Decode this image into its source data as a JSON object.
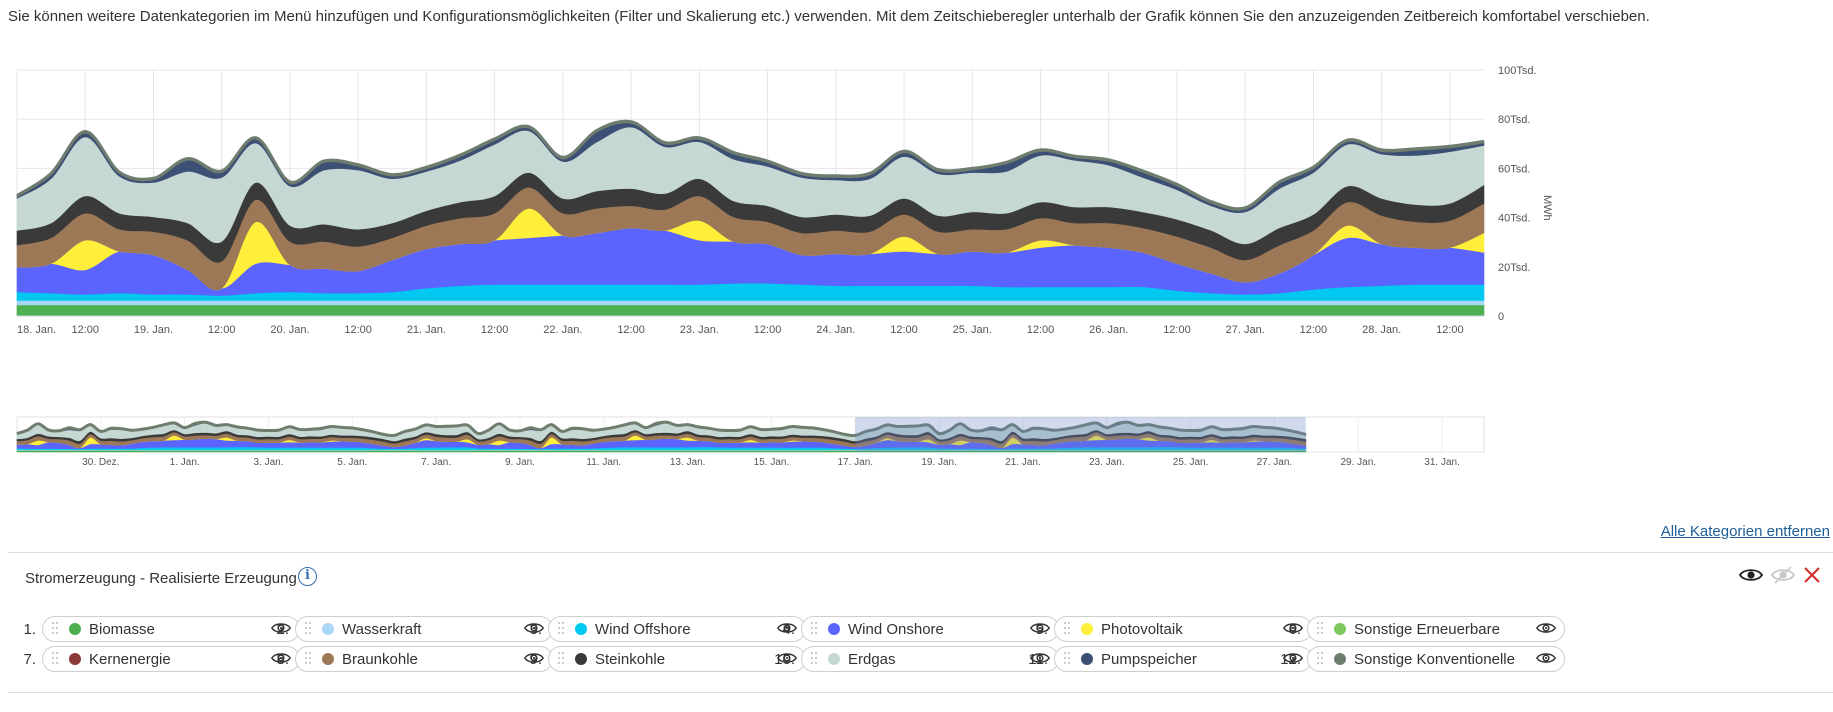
{
  "intro_text": "Sie können weitere Datenkategorien im Menü hinzufügen und Konfigurationsmöglichkeiten (Filter und Skalierung etc.) verwenden. Mit dem Zeitschieberegler unterhalb der Grafik können Sie den anzuzeigenden Zeitbereich komfortabel verschieben.",
  "remove_all_label": "Alle Kategorien entfernen",
  "section_title": "Stromerzeugung - Realisierte Erzeugung",
  "info_label": "i",
  "categories": [
    {
      "num": "1.",
      "label": "Biomasse",
      "color": "#4caf50"
    },
    {
      "num": "2.",
      "label": "Wasserkraft",
      "color": "#a8d8f5"
    },
    {
      "num": "3.",
      "label": "Wind Offshore",
      "color": "#00c8f0"
    },
    {
      "num": "4.",
      "label": "Wind Onshore",
      "color": "#5b64ff"
    },
    {
      "num": "5.",
      "label": "Photovoltaik",
      "color": "#ffee3a"
    },
    {
      "num": "6.",
      "label": "Sonstige Erneuerbare",
      "color": "#7dc95e"
    },
    {
      "num": "7.",
      "label": "Kernenergie",
      "color": "#8b3a3a"
    },
    {
      "num": "8.",
      "label": "Braunkohle",
      "color": "#9c7856"
    },
    {
      "num": "9.",
      "label": "Steinkohle",
      "color": "#3a3a3a"
    },
    {
      "num": "10.",
      "label": "Erdgas",
      "color": "#c5d8d4"
    },
    {
      "num": "11.",
      "label": "Pumpspeicher",
      "color": "#3c4f75"
    },
    {
      "num": "12.",
      "label": "Sonstige Konventionelle",
      "color": "#6f7d6f"
    }
  ],
  "chart_data": {
    "type": "area",
    "stacked": true,
    "ylabel": "MWh",
    "ylim": [
      0,
      100000
    ],
    "yticks": [
      0,
      20000,
      40000,
      60000,
      80000,
      100000
    ],
    "ytick_labels": [
      "0",
      "20Tsd.",
      "40Tsd.",
      "60Tsd.",
      "80Tsd.",
      "100Tsd."
    ],
    "x_unit": "hours since 18. Jan. 00:00",
    "xlim": [
      0,
      258
    ],
    "xticks": [
      0,
      12,
      24,
      36,
      48,
      60,
      72,
      84,
      96,
      108,
      120,
      132,
      144,
      156,
      168,
      180,
      192,
      204,
      216,
      228,
      240,
      252
    ],
    "xtick_labels": [
      "18. Jan.",
      "12:00",
      "19. Jan.",
      "12:00",
      "20. Jan.",
      "12:00",
      "21. Jan.",
      "12:00",
      "22. Jan.",
      "12:00",
      "23. Jan.",
      "12:00",
      "24. Jan.",
      "12:00",
      "25. Jan.",
      "12:00",
      "26. Jan.",
      "12:00",
      "27. Jan.",
      "12:00",
      "28. Jan.",
      "12:00"
    ],
    "x": [
      0,
      6,
      12,
      18,
      24,
      30,
      36,
      42,
      48,
      54,
      60,
      66,
      72,
      78,
      84,
      90,
      96,
      102,
      108,
      114,
      120,
      126,
      132,
      138,
      144,
      150,
      156,
      162,
      168,
      174,
      180,
      186,
      192,
      198,
      204,
      210,
      216,
      222,
      228,
      234,
      240,
      246,
      252,
      258
    ],
    "series": [
      {
        "name": "Biomasse",
        "color": "#4caf50",
        "values": [
          4500,
          4500,
          4500,
          4500,
          4500,
          4500,
          4500,
          4500,
          4500,
          4500,
          4500,
          4500,
          4500,
          4500,
          4500,
          4500,
          4500,
          4500,
          4500,
          4500,
          4500,
          4500,
          4500,
          4500,
          4500,
          4500,
          4500,
          4500,
          4500,
          4500,
          4500,
          4500,
          4500,
          4500,
          4500,
          4500,
          4500,
          4500,
          4500,
          4500,
          4500,
          4500,
          4500,
          4500
        ]
      },
      {
        "name": "Wasserkraft",
        "color": "#a8d8f5",
        "values": [
          1800,
          1800,
          1800,
          1800,
          1800,
          1800,
          1800,
          1800,
          1800,
          1800,
          1800,
          1800,
          1800,
          1800,
          1800,
          1800,
          1800,
          1800,
          1800,
          1800,
          1800,
          1800,
          1800,
          1800,
          1800,
          1800,
          1800,
          1800,
          1800,
          1800,
          1800,
          1800,
          1800,
          1800,
          1800,
          1800,
          1800,
          1800,
          1800,
          1800,
          1800,
          1800,
          1800,
          1800
        ]
      },
      {
        "name": "Wind Offshore",
        "color": "#00c8f0",
        "values": [
          3500,
          3000,
          2500,
          3000,
          2500,
          2500,
          2000,
          3000,
          3500,
          3000,
          3000,
          3500,
          5000,
          6000,
          6500,
          6500,
          6500,
          6500,
          6500,
          6500,
          6500,
          7000,
          7000,
          6500,
          6000,
          6000,
          6000,
          6000,
          6000,
          5500,
          5500,
          5500,
          5500,
          5500,
          4000,
          3000,
          2500,
          3000,
          4500,
          5500,
          6000,
          6500,
          6500,
          6500
        ]
      },
      {
        "name": "Wind Onshore",
        "color": "#5b64ff",
        "values": [
          10000,
          12000,
          10000,
          17000,
          16000,
          10000,
          3000,
          12000,
          11000,
          10000,
          9000,
          13000,
          16000,
          17000,
          18000,
          19000,
          20000,
          21000,
          23000,
          22000,
          18000,
          17000,
          16000,
          12000,
          13000,
          13000,
          14000,
          13000,
          14000,
          14000,
          16000,
          17000,
          16000,
          14000,
          11000,
          8000,
          5000,
          8000,
          14000,
          20000,
          17000,
          15000,
          15000,
          13000
        ]
      },
      {
        "name": "Photovoltaik",
        "color": "#ffee3a",
        "values": [
          0,
          0,
          12000,
          0,
          0,
          0,
          0,
          17000,
          0,
          0,
          0,
          0,
          0,
          0,
          0,
          12000,
          0,
          0,
          0,
          0,
          8000,
          0,
          0,
          0,
          0,
          0,
          6000,
          0,
          0,
          0,
          3000,
          0,
          0,
          0,
          0,
          0,
          0,
          0,
          0,
          5000,
          0,
          0,
          0,
          8000
        ]
      },
      {
        "name": "Sonstige Erneuerbare",
        "color": "#7dc95e",
        "values": [
          0,
          0,
          0,
          0,
          0,
          0,
          0,
          0,
          0,
          0,
          0,
          0,
          0,
          0,
          0,
          0,
          0,
          0,
          0,
          0,
          0,
          0,
          0,
          0,
          0,
          0,
          0,
          0,
          0,
          0,
          0,
          0,
          0,
          0,
          0,
          0,
          0,
          0,
          0,
          0,
          0,
          0,
          0,
          0
        ]
      },
      {
        "name": "Kernenergie",
        "color": "#8b3a3a",
        "values": [
          0,
          0,
          0,
          0,
          0,
          0,
          0,
          0,
          0,
          0,
          0,
          0,
          0,
          0,
          0,
          0,
          0,
          0,
          0,
          0,
          0,
          0,
          0,
          0,
          0,
          0,
          0,
          0,
          0,
          0,
          0,
          0,
          0,
          0,
          0,
          0,
          0,
          0,
          0,
          0,
          0,
          0,
          0,
          0
        ]
      },
      {
        "name": "Braunkohle",
        "color": "#9c7856",
        "values": [
          9000,
          10500,
          11000,
          9000,
          9500,
          12000,
          11000,
          9000,
          9500,
          11000,
          10000,
          9000,
          9500,
          10500,
          11000,
          8500,
          9000,
          10000,
          9000,
          8500,
          10000,
          10000,
          9000,
          9000,
          9500,
          9000,
          9000,
          9000,
          9000,
          9500,
          9000,
          9000,
          10000,
          10000,
          11000,
          10500,
          9000,
          11500,
          10000,
          9500,
          11500,
          10500,
          11000,
          12000
        ]
      },
      {
        "name": "Steinkohle",
        "color": "#3a3a3a",
        "values": [
          6000,
          6000,
          7000,
          6500,
          6000,
          7000,
          8000,
          7000,
          6500,
          7000,
          7000,
          6000,
          6000,
          6500,
          7000,
          6000,
          6000,
          7000,
          7000,
          6500,
          7000,
          6500,
          6500,
          6500,
          6500,
          6500,
          6500,
          6500,
          7000,
          6500,
          6500,
          6500,
          6500,
          6500,
          7000,
          7000,
          6500,
          7000,
          6500,
          6500,
          7000,
          7000,
          7000,
          7500
        ]
      },
      {
        "name": "Erdgas",
        "color": "#c5d8d4",
        "values": [
          13000,
          18000,
          24000,
          15000,
          14000,
          21000,
          26000,
          16000,
          16000,
          22000,
          24000,
          18000,
          16000,
          17000,
          21000,
          17000,
          15000,
          20000,
          25000,
          19000,
          15000,
          17000,
          16000,
          16000,
          14000,
          15000,
          17000,
          17000,
          16000,
          17000,
          19000,
          19000,
          17000,
          14000,
          12000,
          10000,
          13000,
          16000,
          17000,
          17000,
          18000,
          20000,
          21000,
          16000
        ]
      },
      {
        "name": "Pumpspeicher",
        "color": "#3c4f75",
        "values": [
          500,
          1500,
          1500,
          1000,
          1000,
          4500,
          2000,
          1500,
          1000,
          3000,
          1500,
          1000,
          1000,
          1500,
          1500,
          1000,
          1000,
          4000,
          1500,
          1000,
          1000,
          2000,
          1500,
          1000,
          1000,
          1500,
          1500,
          1000,
          1000,
          3000,
          1500,
          1000,
          1500,
          2000,
          1500,
          1000,
          1000,
          2000,
          1500,
          1000,
          1000,
          2000,
          1500,
          1000
        ]
      },
      {
        "name": "Sonstige Konventionelle",
        "color": "#6f7d6f",
        "values": [
          700,
          700,
          700,
          700,
          700,
          700,
          700,
          700,
          700,
          700,
          700,
          700,
          700,
          700,
          700,
          700,
          700,
          700,
          700,
          700,
          700,
          700,
          700,
          700,
          700,
          700,
          700,
          700,
          700,
          700,
          700,
          700,
          700,
          700,
          700,
          700,
          700,
          700,
          700,
          700,
          700,
          700,
          700,
          700
        ]
      }
    ],
    "navigator": {
      "type": "area",
      "x_unit": "days since 28. Dez.",
      "xlim": [
        0,
        35
      ],
      "selected_range": [
        20,
        30.75
      ],
      "xticks": [
        2,
        4,
        6,
        8,
        10,
        12,
        14,
        16,
        18,
        20,
        22,
        24,
        26,
        28,
        30,
        32,
        34
      ],
      "xtick_labels": [
        "30. Dez.",
        "1. Jan.",
        "3. Jan.",
        "5. Jan.",
        "7. Jan.",
        "9. Jan.",
        "11. Jan.",
        "13. Jan.",
        "15. Jan.",
        "17. Jan.",
        "19. Jan.",
        "21. Jan.",
        "23. Jan.",
        "25. Jan.",
        "27. Jan.",
        "29. Jan.",
        "31. Jan."
      ],
      "data_end": 30.75
    }
  }
}
